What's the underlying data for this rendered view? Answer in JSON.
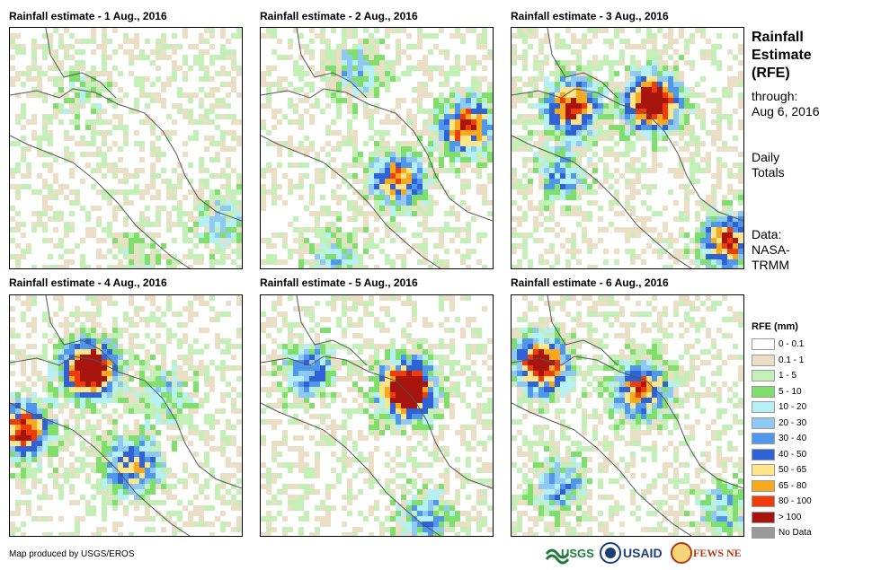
{
  "panels": [
    {
      "title": "Rainfall estimate - 1 Aug., 2016",
      "intensity": "low"
    },
    {
      "title": "Rainfall estimate - 2 Aug., 2016",
      "intensity": "moderate"
    },
    {
      "title": "Rainfall estimate - 3 Aug., 2016",
      "intensity": "high"
    },
    {
      "title": "Rainfall estimate - 4 Aug., 2016",
      "intensity": "high"
    },
    {
      "title": "Rainfall estimate - 5 Aug., 2016",
      "intensity": "high"
    },
    {
      "title": "Rainfall estimate - 6 Aug., 2016",
      "intensity": "moderate"
    }
  ],
  "side": {
    "title_line1": "Rainfall",
    "title_line2": "Estimate",
    "title_line3": "(RFE)",
    "through_label": "through:",
    "through_date": "Aug 6, 2016",
    "totals_line1": "Daily",
    "totals_line2": "Totals",
    "data_label": "Data:",
    "data_source_line1": "NASA-",
    "data_source_line2": "TRMM"
  },
  "legend": {
    "title": "RFE (mm)",
    "items": [
      {
        "label": "0 - 0.1",
        "color": "#ffffff"
      },
      {
        "label": "0.1 - 1",
        "color": "#eadfc4"
      },
      {
        "label": "1 - 5",
        "color": "#c3f0b6"
      },
      {
        "label": "5 - 10",
        "color": "#7ee06a"
      },
      {
        "label": "10 - 20",
        "color": "#b5f0f5"
      },
      {
        "label": "20 - 30",
        "color": "#8fc8f2"
      },
      {
        "label": "30 - 40",
        "color": "#4f97ec"
      },
      {
        "label": "40 - 50",
        "color": "#2f62d6"
      },
      {
        "label": "50 - 65",
        "color": "#fde58a"
      },
      {
        "label": "65 - 80",
        "color": "#f8a81c"
      },
      {
        "label": "80 - 100",
        "color": "#f03c0a"
      },
      {
        "label": "> 100",
        "color": "#a8140e"
      },
      {
        "label": "No Data",
        "color": "#9a9a9a"
      }
    ]
  },
  "footer": {
    "credit": "Map produced by USGS/EROS"
  },
  "logos": {
    "usgs": "USGS",
    "usaid": "USAID",
    "fewsnet": "FEWS NET"
  }
}
